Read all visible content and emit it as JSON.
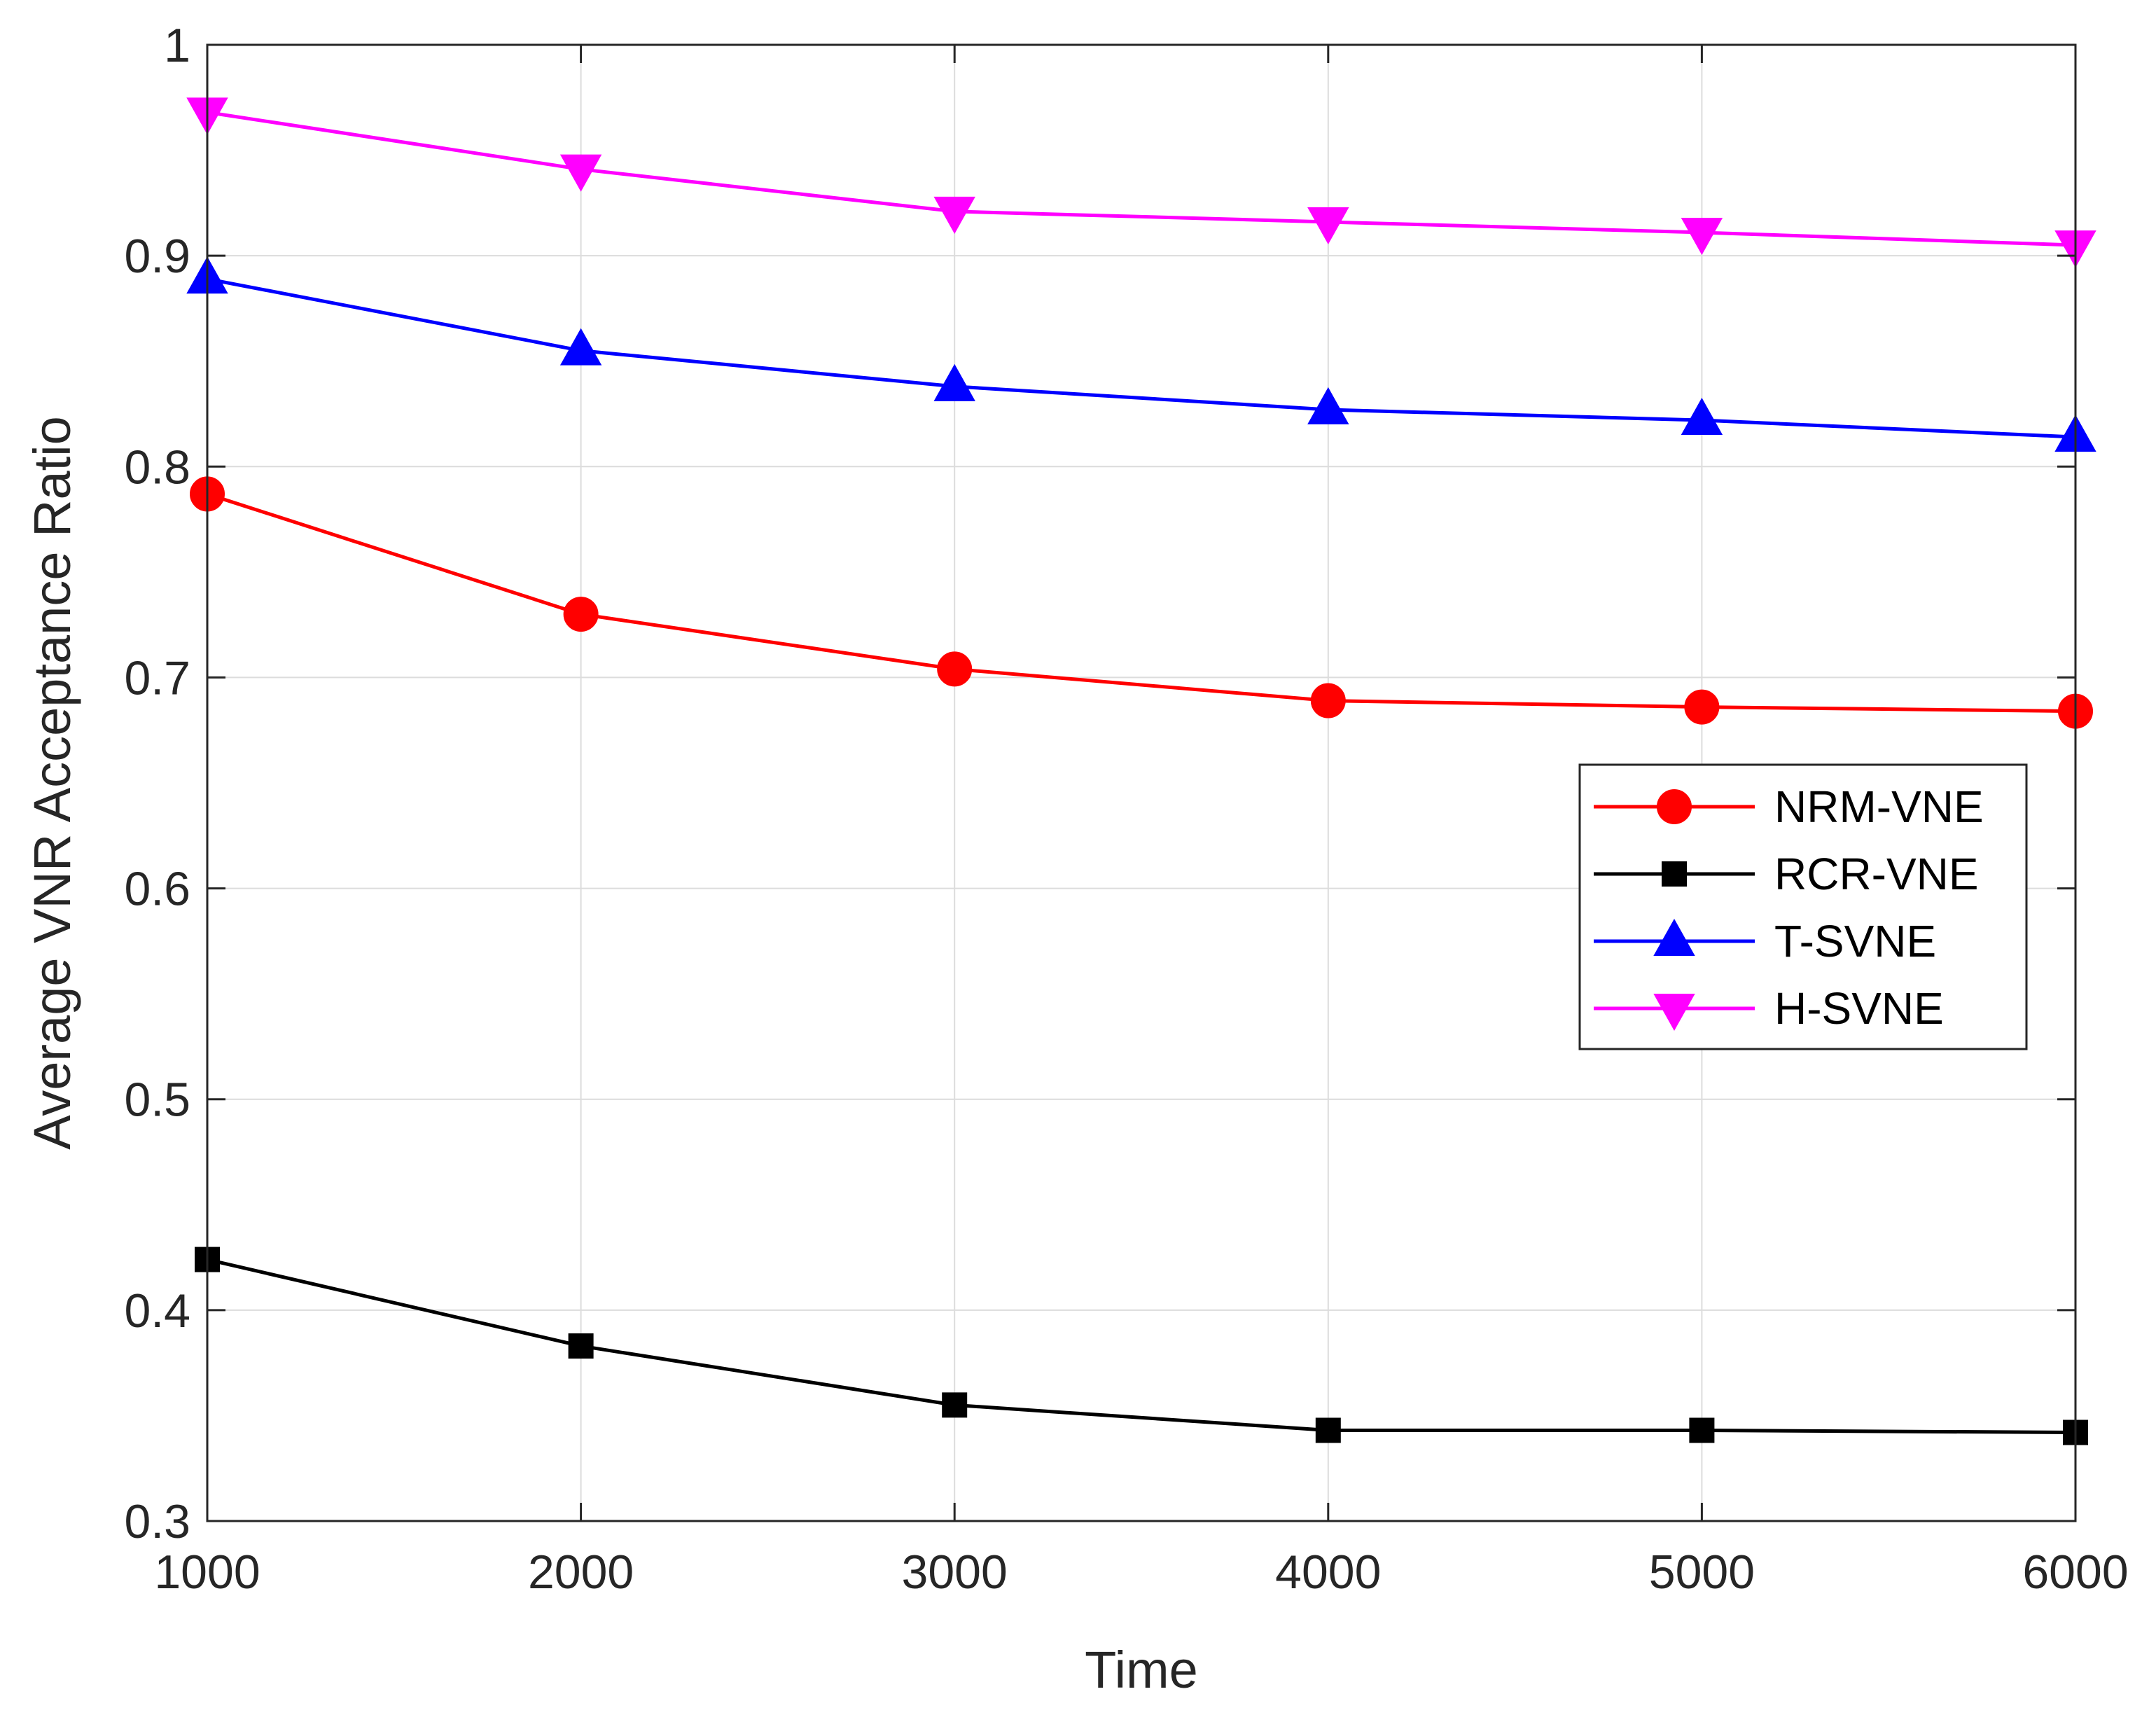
{
  "chart_data": {
    "type": "line",
    "title": "",
    "xlabel": "Time",
    "ylabel": "Average VNR Acceptance Ratio",
    "x": [
      1000,
      2000,
      3000,
      4000,
      5000,
      6000
    ],
    "xlim": [
      1000,
      6000
    ],
    "ylim": [
      0.3,
      1.0
    ],
    "xticks": [
      1000,
      2000,
      3000,
      4000,
      5000,
      6000
    ],
    "xtick_labels": [
      "1000",
      "2000",
      "3000",
      "4000",
      "5000",
      "6000"
    ],
    "yticks": [
      0.3,
      0.4,
      0.5,
      0.6,
      0.7,
      0.8,
      0.9,
      1.0
    ],
    "ytick_labels": [
      "0.3",
      "0.4",
      "0.5",
      "0.6",
      "0.7",
      "0.8",
      "0.9",
      "1"
    ],
    "grid": true,
    "legend_position": "center-right",
    "series": [
      {
        "name": "NRM-VNE",
        "color": "#ff0000",
        "marker": "circle",
        "values": [
          0.787,
          0.73,
          0.704,
          0.689,
          0.686,
          0.684
        ]
      },
      {
        "name": "RCR-VNE",
        "color": "#000000",
        "marker": "square",
        "values": [
          0.424,
          0.383,
          0.355,
          0.343,
          0.343,
          0.342
        ]
      },
      {
        "name": "T-SVNE",
        "color": "#0000ff",
        "marker": "triangle-up",
        "values": [
          0.889,
          0.855,
          0.838,
          0.827,
          0.822,
          0.814
        ]
      },
      {
        "name": "H-SVNE",
        "color": "#ff00ff",
        "marker": "triangle-down",
        "values": [
          0.968,
          0.941,
          0.921,
          0.916,
          0.911,
          0.905
        ]
      }
    ]
  }
}
